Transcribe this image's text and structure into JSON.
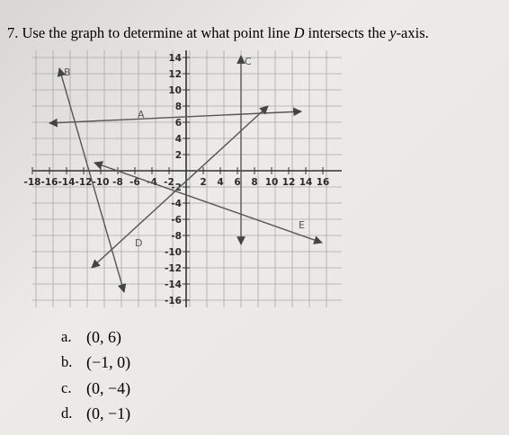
{
  "question": [
    "7. Use the graph to determine at what point line ",
    "D",
    " intersects the ",
    "y",
    "-axis."
  ],
  "graph": {
    "x_tick_labels": [
      "-18",
      "-16",
      "-14",
      "-12",
      "-10",
      "-8",
      "-6",
      "-4",
      "-2",
      "2",
      "4",
      "6",
      "8",
      "10",
      "12",
      "14",
      "16"
    ],
    "y_tick_labels": [
      "14",
      "12",
      "10",
      "8",
      "6",
      "4",
      "2",
      "-2",
      "-4",
      "-6",
      "-8",
      "-10",
      "-12",
      "-14",
      "-16"
    ],
    "line_labels": [
      "B",
      "C",
      "A",
      "D",
      "E"
    ]
  },
  "choices": [
    {
      "letter": "a.",
      "text": "(0, 6)"
    },
    {
      "letter": "b.",
      "text": "(−1, 0)"
    },
    {
      "letter": "c.",
      "text": "(0, −4)"
    },
    {
      "letter": "d.",
      "text": "(0, −1)"
    }
  ]
}
